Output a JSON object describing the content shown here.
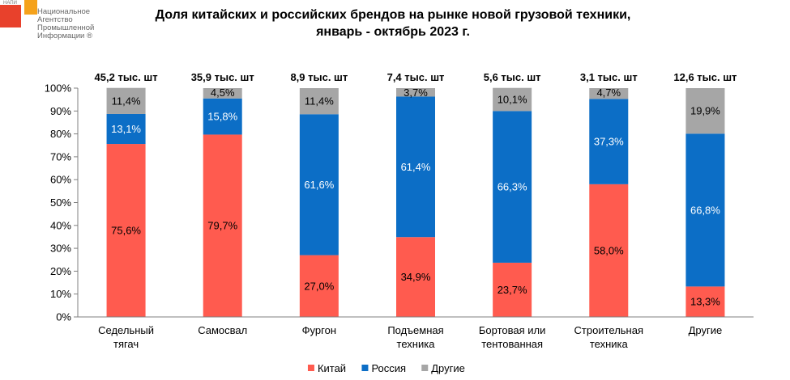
{
  "logo": {
    "abbr": "НАПИ",
    "name": "Национальное\nАгентство\nПромышленной\nИнформации ®"
  },
  "chart_data": {
    "type": "bar",
    "stacked": true,
    "title": [
      "Доля китайских и российских брендов на рынке новой грузовой техники,",
      "январь - октябрь 2023 г."
    ],
    "categories": [
      [
        "Седельный",
        "тягач"
      ],
      [
        "Самосвал"
      ],
      [
        "Фургон"
      ],
      [
        "Подъемная",
        "техника"
      ],
      [
        "Бортовая или",
        "тентованная"
      ],
      [
        "Строительная",
        "техника"
      ],
      [
        "Другие"
      ]
    ],
    "totals": [
      "45,2 тыс. шт",
      "35,9 тыс. шт",
      "8,9 тыс. шт",
      "7,4 тыс. шт",
      "5,6 тыс. шт",
      "3,1 тыс. шт",
      "12,6 тыс. шт"
    ],
    "series": [
      {
        "name": "Китай",
        "color": "#ff5b4f",
        "label_color": "#000000",
        "values": [
          75.6,
          79.7,
          27.0,
          34.9,
          23.7,
          58.0,
          13.3
        ],
        "labels": [
          "75,6%",
          "79,7%",
          "27,0%",
          "34,9%",
          "23,7%",
          "58,0%",
          "13,3%"
        ]
      },
      {
        "name": "Россия",
        "color": "#0c6ec6",
        "label_color": "#ffffff",
        "values": [
          13.1,
          15.8,
          61.6,
          61.4,
          66.3,
          37.3,
          66.8
        ],
        "labels": [
          "13,1%",
          "15,8%",
          "61,6%",
          "61,4%",
          "66,3%",
          "37,3%",
          "66,8%"
        ]
      },
      {
        "name": "Другие",
        "color": "#a6a6a6",
        "label_color": "#000000",
        "values": [
          11.4,
          4.5,
          11.4,
          3.7,
          10.1,
          4.7,
          19.9
        ],
        "labels": [
          "11,4%",
          "4,5%",
          "11,4%",
          "3,7%",
          "10,1%",
          "4,7%",
          "19,9%"
        ]
      }
    ],
    "y_ticks": [
      "0%",
      "10%",
      "20%",
      "30%",
      "40%",
      "50%",
      "60%",
      "70%",
      "80%",
      "90%",
      "100%"
    ],
    "ylim": [
      0,
      100
    ],
    "grid": false,
    "legend": "bottom"
  }
}
